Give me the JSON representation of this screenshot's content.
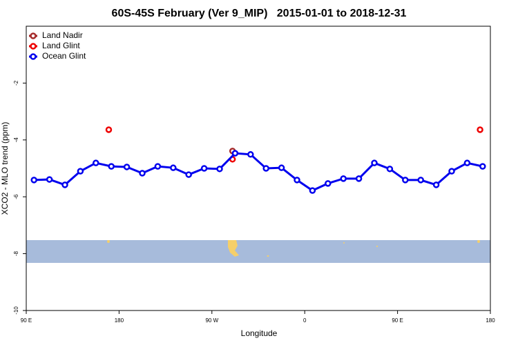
{
  "chart_data": {
    "type": "line",
    "title": "60S-45S February (Ver 9_MIP)   2015-01-01 to 2018-12-31",
    "x_label": "Longitude",
    "y_label": "XCO2 - MLO trend (ppm)",
    "xlim": [
      90,
      540
    ],
    "xticks": [
      {
        "value": 90,
        "label": "90 E"
      },
      {
        "value": 180,
        "label": "180"
      },
      {
        "value": 270,
        "label": "90 W"
      },
      {
        "value": 360,
        "label": "0"
      },
      {
        "value": 450,
        "label": "90 E"
      },
      {
        "value": 540,
        "label": "180"
      }
    ],
    "ylim": [
      -10,
      0
    ],
    "yticks": [
      -10,
      -8,
      -6,
      -4,
      -2
    ],
    "legend": "top-left",
    "series": [
      {
        "name": "Land Nadir",
        "color": "#a52a2a",
        "connected": false,
        "x": [
          290
        ],
        "values": [
          -4.39
        ]
      },
      {
        "name": "Land Glint",
        "color": "#ee0000",
        "connected": false,
        "x": [
          170,
          290,
          530
        ],
        "values": [
          -3.64,
          -4.68,
          -3.64
        ]
      },
      {
        "name": "Ocean Glint",
        "color": "#0000ee",
        "connected": true,
        "x": [
          97.5,
          112.5,
          127.5,
          142.5,
          157.5,
          172.5,
          187.5,
          202.5,
          217.5,
          232.5,
          247.5,
          262.5,
          277.5,
          292.5,
          307.5,
          322.5,
          337.5,
          352.5,
          367.5,
          382.5,
          397.5,
          412.5,
          427.5,
          442.5,
          457.5,
          472.5,
          487.5,
          502.5,
          517.5,
          532.5
        ],
        "values": [
          -5.41,
          -5.39,
          -5.58,
          -5.1,
          -4.81,
          -4.93,
          -4.95,
          -5.17,
          -4.93,
          -4.98,
          -5.22,
          -5.0,
          -5.02,
          -4.47,
          -4.51,
          -5.0,
          -4.98,
          -5.41,
          -5.78,
          -5.53,
          -5.36,
          -5.36,
          -4.81,
          -5.02,
          -5.41,
          -5.41,
          -5.58,
          -5.1,
          -4.81,
          -4.93
        ]
      }
    ]
  }
}
